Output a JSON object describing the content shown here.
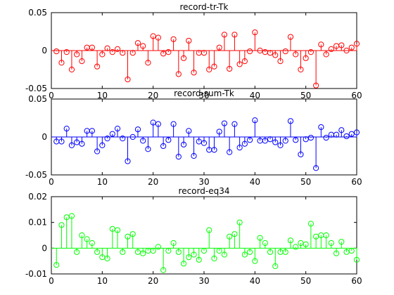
{
  "chart_data": [
    {
      "type": "stem",
      "title": "record-tr-Tk",
      "xlim": [
        0,
        60
      ],
      "ylim": [
        -0.05,
        0.05
      ],
      "x_ticks": [
        0,
        10,
        20,
        30,
        40,
        50,
        60
      ],
      "y_ticks": [
        0.05,
        0,
        -0.05
      ],
      "y_tick_labels": [
        "0.05",
        "0",
        "-0.05"
      ],
      "color": "#ff0000",
      "baseline": 0,
      "x": [
        1,
        2,
        3,
        4,
        5,
        6,
        7,
        8,
        9,
        10,
        11,
        12,
        13,
        14,
        15,
        16,
        17,
        18,
        19,
        20,
        21,
        22,
        23,
        24,
        25,
        26,
        27,
        28,
        29,
        30,
        31,
        32,
        33,
        34,
        35,
        36,
        37,
        38,
        39,
        40,
        41,
        42,
        43,
        44,
        45,
        46,
        47,
        48,
        49,
        50,
        51,
        52,
        53,
        54,
        55,
        56,
        57,
        58,
        59,
        60
      ],
      "values": [
        -0.001,
        -0.016,
        -0.002,
        -0.025,
        -0.005,
        -0.014,
        0.004,
        0.004,
        -0.021,
        -0.005,
        0.003,
        -0.002,
        0.002,
        -0.003,
        -0.038,
        -0.003,
        0.01,
        0.006,
        -0.016,
        0.019,
        0.017,
        -0.004,
        -0.002,
        0.015,
        -0.031,
        -0.01,
        0.013,
        -0.029,
        -0.003,
        -0.003,
        -0.025,
        -0.021,
        0.004,
        0.021,
        -0.024,
        0.021,
        -0.018,
        -0.014,
        -0.001,
        0.024,
        0.0,
        -0.002,
        -0.003,
        -0.006,
        -0.014,
        -0.001,
        0.018,
        -0.005,
        -0.025,
        -0.01,
        -0.002,
        -0.046,
        0.008,
        -0.005,
        0.002,
        0.006,
        0.007,
        0.0,
        0.004,
        0.009
      ]
    },
    {
      "type": "stem",
      "title": "record-sum-Tk",
      "xlim": [
        0,
        60
      ],
      "ylim": [
        -0.05,
        0.05
      ],
      "x_ticks": [
        0,
        10,
        20,
        30,
        40,
        50,
        60
      ],
      "y_ticks": [
        0.05,
        0,
        -0.05
      ],
      "y_tick_labels": [
        "0.05",
        "0",
        "-0.05"
      ],
      "color": "#0000ff",
      "baseline": 0,
      "x": [
        1,
        2,
        3,
        4,
        5,
        6,
        7,
        8,
        9,
        10,
        11,
        12,
        13,
        14,
        15,
        16,
        17,
        18,
        19,
        20,
        21,
        22,
        23,
        24,
        25,
        26,
        27,
        28,
        29,
        30,
        31,
        32,
        33,
        34,
        35,
        36,
        37,
        38,
        39,
        40,
        41,
        42,
        43,
        44,
        45,
        46,
        47,
        48,
        49,
        50,
        51,
        52,
        53,
        54,
        55,
        56,
        57,
        58,
        59,
        60
      ],
      "values": [
        -0.006,
        -0.006,
        0.011,
        -0.011,
        -0.007,
        -0.009,
        0.008,
        0.008,
        -0.019,
        -0.011,
        -0.002,
        0.004,
        0.011,
        -0.002,
        -0.032,
        0.0,
        0.01,
        -0.005,
        -0.016,
        0.019,
        0.017,
        -0.012,
        -0.004,
        0.017,
        -0.026,
        -0.01,
        0.008,
        -0.025,
        -0.006,
        -0.008,
        -0.017,
        -0.017,
        0.007,
        0.018,
        -0.02,
        0.017,
        -0.014,
        -0.009,
        -0.004,
        0.022,
        -0.005,
        -0.005,
        -0.003,
        -0.007,
        -0.011,
        -0.005,
        0.021,
        -0.004,
        -0.023,
        -0.003,
        -0.001,
        -0.041,
        0.013,
        -0.001,
        0.003,
        0.003,
        0.009,
        0.001,
        0.004,
        0.006
      ]
    },
    {
      "type": "stem",
      "title": "record-eq34",
      "xlim": [
        0,
        60
      ],
      "ylim": [
        -0.01,
        0.02
      ],
      "x_ticks": [
        0,
        10,
        20,
        30,
        40,
        50,
        60
      ],
      "y_ticks": [
        0.02,
        0.01,
        0,
        -0.01
      ],
      "y_tick_labels": [
        "0.02",
        "0.01",
        "0",
        "-0.01"
      ],
      "color": "#00ff00",
      "baseline": 0,
      "x": [
        1,
        2,
        3,
        4,
        5,
        6,
        7,
        8,
        9,
        10,
        11,
        12,
        13,
        14,
        15,
        16,
        17,
        18,
        19,
        20,
        21,
        22,
        23,
        24,
        25,
        26,
        27,
        28,
        29,
        30,
        31,
        32,
        33,
        34,
        35,
        36,
        37,
        38,
        39,
        40,
        41,
        42,
        43,
        44,
        45,
        46,
        47,
        48,
        49,
        50,
        51,
        52,
        53,
        54,
        55,
        56,
        57,
        58,
        59,
        60
      ],
      "values": [
        -0.0065,
        0.009,
        0.012,
        0.0125,
        -0.0015,
        0.005,
        0.0035,
        0.002,
        -0.0015,
        -0.0035,
        -0.004,
        0.0075,
        0.007,
        -0.0015,
        0.0045,
        0.0055,
        -0.0015,
        -0.002,
        -0.001,
        -0.001,
        0.0005,
        -0.0085,
        -0.001,
        0.002,
        -0.0015,
        -0.006,
        -0.0035,
        -0.0025,
        -0.0045,
        -0.001,
        0.007,
        -0.004,
        -0.001,
        -0.0025,
        0.0045,
        0.0055,
        0.01,
        -0.0025,
        -0.0015,
        -0.005,
        0.004,
        0.002,
        -0.0015,
        -0.007,
        -0.0015,
        -0.0015,
        0.003,
        0.0005,
        0.002,
        0.0015,
        0.0095,
        0.0045,
        0.005,
        0.005,
        0.002,
        -0.002,
        0.0025,
        -0.0015,
        -0.001,
        -0.0045
      ]
    }
  ]
}
